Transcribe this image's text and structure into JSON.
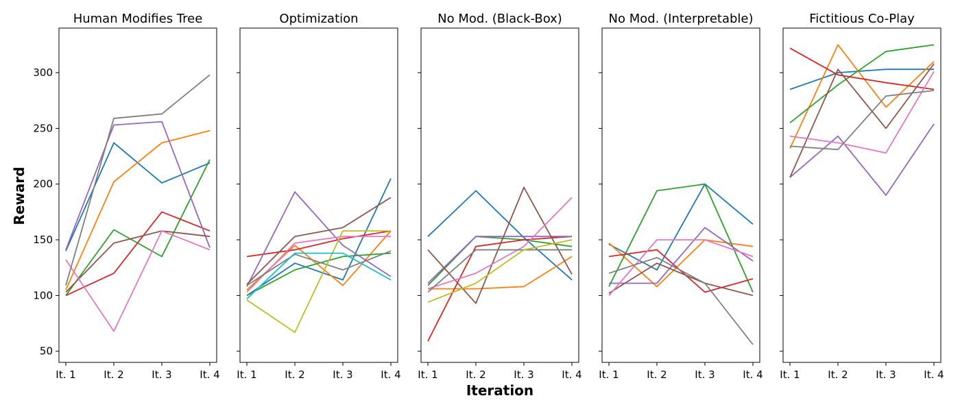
{
  "chart_data": {
    "type": "line",
    "xlabel": "Iteration",
    "ylabel": "Reward",
    "categories": [
      "It. 1",
      "It. 2",
      "It. 3",
      "It. 4"
    ],
    "yticks": [
      50,
      100,
      150,
      200,
      250,
      300
    ],
    "ylim": [
      40,
      340
    ],
    "grid": false,
    "colors": [
      "#1f77b4",
      "#ff7f0e",
      "#2ca02c",
      "#d62728",
      "#9467bd",
      "#8c564b",
      "#e377c2",
      "#7f7f7f",
      "#bcbd22",
      "#17becf"
    ],
    "panels": [
      {
        "title": "Human Modifies Tree",
        "series": [
          {
            "values": [
              140,
              237,
              201,
              219
            ]
          },
          {
            "values": [
              105,
              202,
              237,
              248
            ]
          },
          {
            "values": [
              100,
              159,
              135,
              222
            ]
          },
          {
            "values": [
              100,
              120,
              175,
              158
            ]
          },
          {
            "values": [
              141,
              253,
              256,
              143
            ]
          },
          {
            "values": [
              103,
              147,
              158,
              153
            ]
          },
          {
            "values": [
              132,
              68,
              158,
              141
            ]
          },
          {
            "values": [
              109,
              259,
              263,
              298
            ]
          }
        ]
      },
      {
        "title": "Optimization",
        "series": [
          {
            "values": [
              100,
              129,
              114,
              205
            ]
          },
          {
            "values": [
              105,
              145,
              109,
              158
            ]
          },
          {
            "values": [
              100,
              123,
              135,
              138
            ]
          },
          {
            "values": [
              135,
              141,
              151,
              158
            ]
          },
          {
            "values": [
              108,
              193,
              145,
              117
            ]
          },
          {
            "values": [
              110,
              153,
              161,
              188
            ]
          },
          {
            "values": [
              103,
              147,
              153,
              153
            ]
          },
          {
            "values": [
              109,
              137,
              123,
              140
            ]
          },
          {
            "values": [
              96,
              67,
              158,
              158
            ]
          },
          {
            "values": [
              97,
              138,
              138,
              114
            ]
          }
        ]
      },
      {
        "title": "No Mod. (Black-Box)",
        "series": [
          {
            "values": [
              153,
              194,
              152,
              114
            ]
          },
          {
            "values": [
              106,
              106,
              108,
              135
            ]
          },
          {
            "values": [
              109,
              153,
              150,
              144
            ]
          },
          {
            "values": [
              59,
              144,
              150,
              153
            ]
          },
          {
            "values": [
              111,
              153,
              153,
              153
            ]
          },
          {
            "values": [
              141,
              93,
              197,
              119
            ]
          },
          {
            "values": [
              106,
              120,
              144,
              188
            ]
          },
          {
            "values": [
              103,
              141,
              141,
              141
            ]
          },
          {
            "values": [
              94,
              111,
              141,
              150
            ]
          }
        ]
      },
      {
        "title": "No Mod. (Interpretable)",
        "series": [
          {
            "values": [
              146,
              123,
              200,
              164
            ]
          },
          {
            "values": [
              147,
              108,
              150,
              144
            ]
          },
          {
            "values": [
              108,
              194,
              200,
              103
            ]
          },
          {
            "values": [
              135,
              141,
              103,
              115
            ]
          },
          {
            "values": [
              111,
              111,
              161,
              131
            ]
          },
          {
            "values": [
              102,
              129,
              111,
              100
            ]
          },
          {
            "values": [
              100,
              150,
              150,
              135
            ]
          },
          {
            "values": [
              120,
              134,
              111,
              56
            ]
          }
        ]
      },
      {
        "title": "Fictitious Co-Play",
        "series": [
          {
            "values": [
              285,
              300,
              303,
              303
            ]
          },
          {
            "values": [
              232,
              325,
              269,
              310
            ]
          },
          {
            "values": [
              255,
              289,
              319,
              325
            ]
          },
          {
            "values": [
              322,
              298,
              291,
              285
            ]
          },
          {
            "values": [
              206,
              243,
              190,
              254
            ]
          },
          {
            "values": [
              206,
              303,
              250,
              308
            ]
          },
          {
            "values": [
              243,
              237,
              228,
              301
            ]
          },
          {
            "values": [
              234,
              231,
              279,
              284
            ]
          }
        ]
      }
    ]
  }
}
